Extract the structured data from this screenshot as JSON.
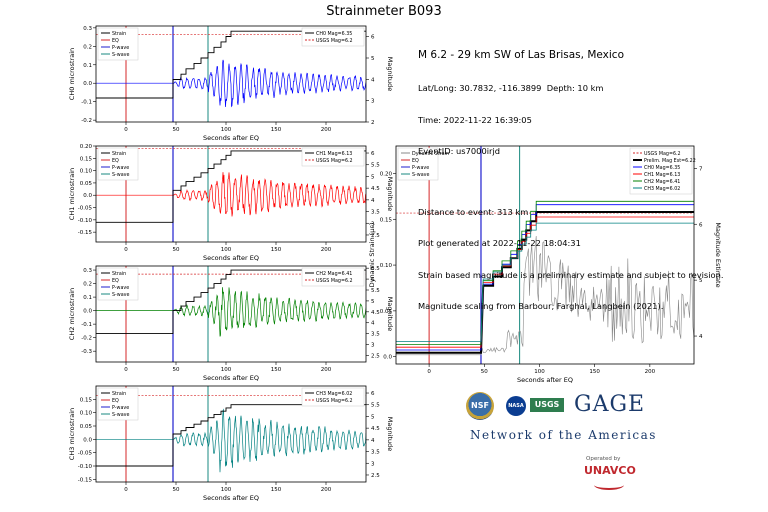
{
  "page": {
    "title": "Strainmeter B093"
  },
  "info": {
    "headline": "M 6.2 - 29 km SW of Las Brisas, Mexico",
    "latlong": "Lat/Long: 30.7832, -116.3899  Depth: 10 km",
    "time": "Time: 2022-11-22 16:39:05",
    "eventid": "EventID: us7000irjd",
    "distance": "Distance to event: 313 km",
    "generated": "Plot generated at 2022-11-22 18:04:31",
    "note1": "Strain based magnitude is a preliminary estimate and subject to revision.",
    "note2": "Magnitude scaling from Barbour, Farghal, Langbein (2021)."
  },
  "logos": {
    "nsf": "NSF",
    "nasa": "NASA",
    "usgs": "USGS",
    "gage": "GAGE",
    "network": "Network of the Americas",
    "operated_by": "Operated by",
    "unavco": "UNAVCO"
  },
  "colors": {
    "eq": "#d62728",
    "pwave": "#1f1fcf",
    "swave": "#1a8a80",
    "strain": "#000000",
    "usgs": "#d62728",
    "ch0": "#0000ff",
    "ch1": "#ff0000",
    "ch2": "#008000",
    "ch3": "#008080"
  },
  "chart_data": [
    {
      "type": "line",
      "id": "ch0",
      "xlabel": "Seconds after EQ",
      "ylabel": "CH0 microstrain",
      "y2label": "Magnitude",
      "xlim": [
        -30,
        240
      ],
      "ylim": [
        -0.21,
        0.31
      ],
      "y2lim": [
        2,
        6.5
      ],
      "xticks": [
        0,
        50,
        100,
        150,
        200
      ],
      "yticks": [
        -0.2,
        -0.1,
        0.0,
        0.1,
        0.2,
        0.3
      ],
      "y2ticks": [
        2,
        3,
        4,
        5,
        6
      ],
      "eq_time": 0,
      "p_wave": 47,
      "s_wave": 82,
      "trace": {
        "name": "Strain",
        "pre": 0.0,
        "amp": 0.13,
        "decay": 55,
        "period": 6
      },
      "cumulative": {
        "name": "CH0 Mag=6.35",
        "start": -0.08,
        "p_level": 0.02,
        "end": 0.282,
        "final_mag": 6.35
      },
      "usgs": {
        "name": "USGS Mag=6.2",
        "value": 0.265
      },
      "legend_left": [
        "Strain",
        "EQ",
        "P-wave",
        "S-wave"
      ],
      "legend_right": [
        "CH0 Mag=6.35",
        "USGS Mag=6.2"
      ]
    },
    {
      "type": "line",
      "id": "ch1",
      "xlabel": "Seconds after EQ",
      "ylabel": "CH1 microstrain",
      "y2label": "Magnitude",
      "xlim": [
        -30,
        240
      ],
      "ylim": [
        -0.19,
        0.2
      ],
      "y2lim": [
        2.2,
        6.3
      ],
      "xticks": [
        0,
        50,
        100,
        150,
        200
      ],
      "yticks": [
        -0.15,
        -0.1,
        -0.05,
        0.0,
        0.05,
        0.1,
        0.15,
        0.2
      ],
      "y2ticks": [
        2.5,
        3.0,
        3.5,
        4.0,
        4.5,
        5.0,
        5.5,
        6.0
      ],
      "eq_time": 0,
      "p_wave": 47,
      "s_wave": 82,
      "trace": {
        "name": "Strain",
        "pre": 0.0,
        "amp": 0.09,
        "decay": 80,
        "period": 6
      },
      "cumulative": {
        "name": "CH1 Mag=6.13",
        "start": -0.11,
        "p_level": 0.02,
        "end": 0.18,
        "final_mag": 6.13
      },
      "usgs": {
        "name": "USGS Mag=6.2",
        "value": 0.19
      },
      "legend_left": [
        "Strain",
        "EQ",
        "P-wave",
        "S-wave"
      ],
      "legend_right": [
        "CH1 Mag=6.13",
        "USGS Mag=6.2"
      ]
    },
    {
      "type": "line",
      "id": "ch2",
      "xlabel": "Seconds after EQ",
      "ylabel": "CH2 microstrain",
      "y2label": "Magnitude",
      "xlim": [
        -30,
        240
      ],
      "ylim": [
        -0.38,
        0.33
      ],
      "y2lim": [
        2.2,
        6.6
      ],
      "xticks": [
        0,
        50,
        100,
        150,
        200
      ],
      "yticks": [
        -0.3,
        -0.2,
        -0.1,
        0.0,
        0.1,
        0.2,
        0.3
      ],
      "y2ticks": [
        2.5,
        3.0,
        3.5,
        4.0,
        4.5,
        5.0,
        5.5,
        6.0,
        6.5
      ],
      "eq_time": 0,
      "p_wave": 47,
      "s_wave": 82,
      "trace": {
        "name": "Strain",
        "pre": 0.0,
        "amp": 0.16,
        "decay": 70,
        "period": 6
      },
      "cumulative": {
        "name": "CH2 Mag=6.41",
        "start": -0.17,
        "p_level": 0.0,
        "end": 0.3,
        "final_mag": 6.41
      },
      "usgs": {
        "name": "USGS Mag=6.2",
        "value": 0.27
      },
      "legend_left": [
        "Strain",
        "EQ",
        "P-wave",
        "S-wave"
      ],
      "legend_right": [
        "CH2 Mag=6.41",
        "USGS Mag=6.2"
      ]
    },
    {
      "type": "line",
      "id": "ch3",
      "xlabel": "Seconds after EQ",
      "ylabel": "CH3 microstrain",
      "y2label": "Magnitude",
      "xlim": [
        -30,
        240
      ],
      "ylim": [
        -0.16,
        0.2
      ],
      "y2lim": [
        2.2,
        6.3
      ],
      "xticks": [
        0,
        50,
        100,
        150,
        200
      ],
      "yticks": [
        -0.15,
        -0.1,
        -0.05,
        0.0,
        0.05,
        0.1,
        0.15
      ],
      "y2ticks": [
        2.5,
        3.0,
        3.5,
        4.0,
        4.5,
        5.0,
        5.5,
        6.0
      ],
      "eq_time": 0,
      "p_wave": 47,
      "s_wave": 82,
      "trace": {
        "name": "Strain",
        "pre": 0.0,
        "amp": 0.1,
        "decay": 75,
        "period": 6
      },
      "cumulative": {
        "name": "CH3 Mag=6.02",
        "start": -0.1,
        "p_level": 0.02,
        "end": 0.13,
        "final_mag": 6.02
      },
      "usgs": {
        "name": "USGS Mag=6.2",
        "value": 0.165
      },
      "legend_left": [
        "Strain",
        "EQ",
        "P-wave",
        "S-wave"
      ],
      "legend_right": [
        "CH3 Mag=6.02",
        "USGS Mag=6.2"
      ]
    },
    {
      "type": "line",
      "id": "dyn",
      "xlabel": "Seconds after EQ",
      "ylabel": "Dynamic Strain (µε)",
      "y2label": "Magnitude Estimate",
      "xlim": [
        -30,
        240
      ],
      "ylim": [
        -0.008,
        0.23
      ],
      "y2lim": [
        3.5,
        7.4
      ],
      "xticks": [
        0,
        50,
        100,
        150,
        200
      ],
      "yticks": [
        0.0,
        0.05,
        0.1,
        0.15,
        0.2
      ],
      "y2ticks": [
        4,
        5,
        6,
        7
      ],
      "eq_time": 0,
      "p_wave": 47,
      "s_wave": 82,
      "usgs_mag": 6.2,
      "series": [
        {
          "name": "Dynamic Strain",
          "color": "#888888",
          "kind": "dynamic"
        },
        {
          "name": "Prelim. Mag Est=6.22",
          "color": "#000000",
          "final_mag": 6.22,
          "width": 2
        },
        {
          "name": "CH0 Mag=6.35",
          "color": "#0000ff",
          "final_mag": 6.35
        },
        {
          "name": "CH1 Mag=6.13",
          "color": "#ff0000",
          "final_mag": 6.13
        },
        {
          "name": "CH2 Mag=6.41",
          "color": "#008000",
          "final_mag": 6.41
        },
        {
          "name": "CH3 Mag=6.02",
          "color": "#008080",
          "final_mag": 6.02
        }
      ],
      "legend_left": [
        "Dynamic Strain",
        "EQ",
        "P-wave",
        "S-wave"
      ],
      "legend_right": [
        "USGS Mag=6.2",
        "Prelim. Mag Est=6.22",
        "CH0 Mag=6.35",
        "CH1 Mag=6.13",
        "CH2 Mag=6.41",
        "CH3 Mag=6.02"
      ]
    }
  ]
}
